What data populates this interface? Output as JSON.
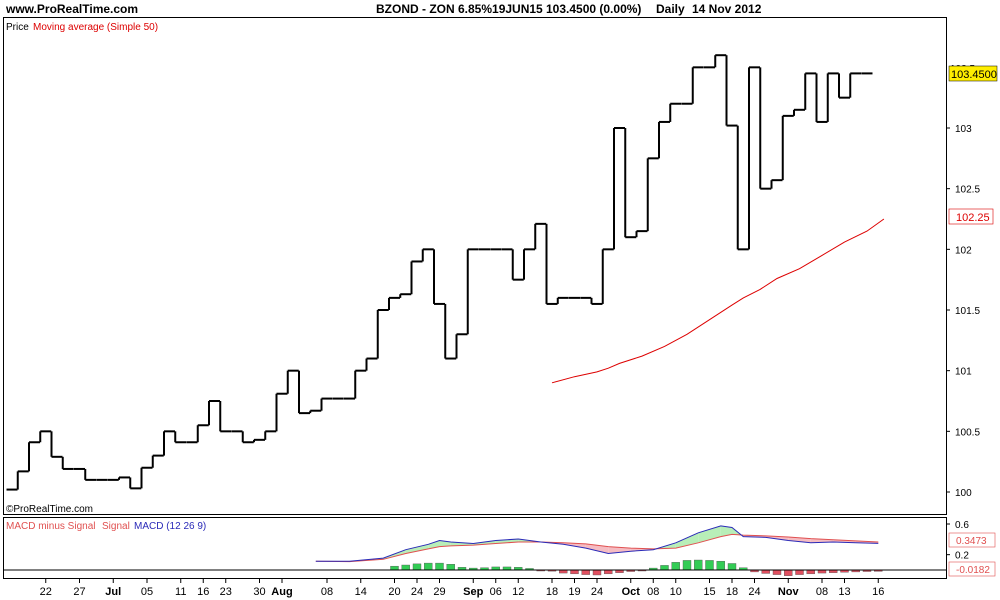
{
  "header": {
    "site": "www.ProRealTime.com",
    "instrument": "BZOND - ZON 6.85%19JUN15",
    "quote": "103.4500 (0.00%)",
    "period": "Daily",
    "date": "14 Nov 2012"
  },
  "price_panel": {
    "legend_price": "Price",
    "legend_ma": "Moving average (Simple 50)",
    "watermark": "©ProRealTime.com",
    "last_price_label": "103.4500",
    "ma_label": "102.25",
    "top_cut_label": "103.5"
  },
  "macd_panel": {
    "legend_hist": "MACD minus Signal",
    "legend_signal": "Signal",
    "legend_macd": "MACD (12 26 9)",
    "macd_label": "0.3473",
    "hist_label": "-0.0182"
  },
  "colors": {
    "price": "#000000",
    "ma": "#dd0000",
    "macd": "#2a2ab8",
    "signal": "#e05050",
    "hist_pos": "#33cc55",
    "hist_neg": "#e05060",
    "fill_up": "#b8eeb8",
    "fill_down": "#f5bcc2",
    "badge_price": "#ffee00",
    "frame": "#000000"
  },
  "chart_data": {
    "type": "line",
    "ylim": [
      99.85,
      104.0
    ],
    "yticks": [
      100,
      100.5,
      101,
      101.5,
      102,
      102.5,
      103
    ],
    "ytick_labels": [
      "100",
      "100.5",
      "101",
      "101.5",
      "102",
      "102.5",
      "103"
    ],
    "x_ticks": [
      {
        "i": 3,
        "label": "22",
        "month": false
      },
      {
        "i": 6,
        "label": "27",
        "month": false
      },
      {
        "i": 9,
        "label": "Jul",
        "month": true
      },
      {
        "i": 12,
        "label": "05",
        "month": false
      },
      {
        "i": 15,
        "label": "11",
        "month": false
      },
      {
        "i": 17,
        "label": "16",
        "month": false
      },
      {
        "i": 19,
        "label": "23",
        "month": false
      },
      {
        "i": 22,
        "label": "30",
        "month": false
      },
      {
        "i": 24,
        "label": "Aug",
        "month": true
      },
      {
        "i": 28,
        "label": "08",
        "month": false
      },
      {
        "i": 31,
        "label": "14",
        "month": false
      },
      {
        "i": 34,
        "label": "20",
        "month": false
      },
      {
        "i": 36,
        "label": "24",
        "month": false
      },
      {
        "i": 38,
        "label": "29",
        "month": false
      },
      {
        "i": 41,
        "label": "Sep",
        "month": true
      },
      {
        "i": 43,
        "label": "06",
        "month": false
      },
      {
        "i": 45,
        "label": "12",
        "month": false
      },
      {
        "i": 48,
        "label": "18",
        "month": false
      },
      {
        "i": 50,
        "label": "19",
        "month": false
      },
      {
        "i": 52,
        "label": "24",
        "month": false
      },
      {
        "i": 55,
        "label": "Oct",
        "month": true
      },
      {
        "i": 57,
        "label": "08",
        "month": false
      },
      {
        "i": 59,
        "label": "10",
        "month": false
      },
      {
        "i": 62,
        "label": "15",
        "month": false
      },
      {
        "i": 64,
        "label": "18",
        "month": false
      },
      {
        "i": 66,
        "label": "24",
        "month": false
      },
      {
        "i": 69,
        "label": "Nov",
        "month": true
      },
      {
        "i": 72,
        "label": "08",
        "month": false
      },
      {
        "i": 74,
        "label": "13",
        "month": false
      },
      {
        "i": 77,
        "label": "16",
        "month": false
      }
    ],
    "price": [
      100.02,
      100.17,
      100.41,
      100.5,
      100.29,
      100.19,
      100.19,
      100.1,
      100.1,
      100.1,
      100.12,
      100.03,
      100.2,
      100.3,
      100.5,
      100.41,
      100.41,
      100.55,
      100.75,
      100.5,
      100.5,
      100.41,
      100.43,
      100.5,
      100.81,
      101.0,
      100.65,
      100.67,
      100.77,
      100.77,
      100.77,
      101.0,
      101.1,
      101.5,
      101.6,
      101.63,
      101.9,
      102.0,
      101.55,
      101.1,
      101.3,
      102.0,
      102.0,
      102.0,
      102.0,
      101.75,
      102.0,
      102.21,
      101.55,
      101.6,
      101.6,
      101.6,
      101.55,
      102.0,
      103.0,
      102.1,
      102.15,
      102.75,
      103.05,
      103.2,
      103.2,
      103.5,
      103.5,
      103.6,
      103.02,
      102.0,
      103.5,
      102.5,
      102.57,
      103.1,
      103.15,
      103.45,
      103.05,
      103.45,
      103.25,
      103.45,
      103.45
    ],
    "moving_average": [
      [
        48.0,
        100.9
      ],
      [
        50.0,
        100.95
      ],
      [
        52.0,
        100.99
      ],
      [
        53.0,
        101.02
      ],
      [
        54.0,
        101.06
      ],
      [
        56.0,
        101.12
      ],
      [
        58.0,
        101.2
      ],
      [
        60.0,
        101.3
      ],
      [
        62.0,
        101.42
      ],
      [
        64.0,
        101.54
      ],
      [
        65.0,
        101.6
      ],
      [
        66.5,
        101.67
      ],
      [
        68.0,
        101.76
      ],
      [
        70.0,
        101.84
      ],
      [
        72.0,
        101.95
      ],
      [
        74.0,
        102.06
      ],
      [
        76.0,
        102.15
      ],
      [
        77.5,
        102.25
      ]
    ],
    "macd": {
      "ylim": [
        -0.22,
        0.75
      ],
      "yticks": [
        0.6,
        0.2
      ],
      "ytick_labels": [
        "0.6",
        "0.2"
      ],
      "macd": [
        [
          27,
          0.115
        ],
        [
          30,
          0.115
        ],
        [
          33,
          0.155
        ],
        [
          35,
          0.265
        ],
        [
          37,
          0.335
        ],
        [
          38,
          0.385
        ],
        [
          39,
          0.365
        ],
        [
          41,
          0.345
        ],
        [
          43,
          0.385
        ],
        [
          45,
          0.405
        ],
        [
          47,
          0.365
        ],
        [
          49,
          0.335
        ],
        [
          51,
          0.285
        ],
        [
          53,
          0.215
        ],
        [
          55,
          0.245
        ],
        [
          57,
          0.265
        ],
        [
          59,
          0.355
        ],
        [
          61,
          0.485
        ],
        [
          63,
          0.575
        ],
        [
          64,
          0.555
        ],
        [
          65,
          0.435
        ],
        [
          67,
          0.425
        ],
        [
          69,
          0.385
        ],
        [
          71,
          0.355
        ],
        [
          73,
          0.365
        ],
        [
          75,
          0.355
        ],
        [
          77,
          0.347
        ]
      ],
      "signal": [
        [
          27,
          0.115
        ],
        [
          30,
          0.11
        ],
        [
          33,
          0.14
        ],
        [
          35,
          0.215
        ],
        [
          37,
          0.275
        ],
        [
          38,
          0.305
        ],
        [
          39,
          0.315
        ],
        [
          41,
          0.325
        ],
        [
          43,
          0.345
        ],
        [
          45,
          0.365
        ],
        [
          47,
          0.365
        ],
        [
          49,
          0.355
        ],
        [
          51,
          0.34
        ],
        [
          53,
          0.305
        ],
        [
          55,
          0.285
        ],
        [
          57,
          0.275
        ],
        [
          59,
          0.285
        ],
        [
          61,
          0.355
        ],
        [
          63,
          0.435
        ],
        [
          64,
          0.465
        ],
        [
          65,
          0.455
        ],
        [
          67,
          0.445
        ],
        [
          69,
          0.43
        ],
        [
          71,
          0.41
        ],
        [
          73,
          0.395
        ],
        [
          75,
          0.38
        ],
        [
          77,
          0.365
        ]
      ],
      "histogram": [
        [
          34,
          0.05
        ],
        [
          35,
          0.065
        ],
        [
          36,
          0.08
        ],
        [
          37,
          0.09
        ],
        [
          38,
          0.09
        ],
        [
          39,
          0.075
        ],
        [
          40,
          0.035
        ],
        [
          41,
          0.025
        ],
        [
          42,
          0.03
        ],
        [
          43,
          0.04
        ],
        [
          44,
          0.04
        ],
        [
          45,
          0.035
        ],
        [
          46,
          0.02
        ],
        [
          47,
          -0.005
        ],
        [
          48,
          -0.015
        ],
        [
          49,
          -0.04
        ],
        [
          50,
          -0.05
        ],
        [
          51,
          -0.06
        ],
        [
          52,
          -0.065
        ],
        [
          53,
          -0.05
        ],
        [
          54,
          -0.035
        ],
        [
          55,
          -0.02
        ],
        [
          56,
          -0.005
        ],
        [
          57,
          0.025
        ],
        [
          58,
          0.06
        ],
        [
          59,
          0.1
        ],
        [
          60,
          0.125
        ],
        [
          61,
          0.13
        ],
        [
          62,
          0.125
        ],
        [
          63,
          0.115
        ],
        [
          64,
          0.085
        ],
        [
          65,
          0.03
        ],
        [
          66,
          -0.025
        ],
        [
          67,
          -0.045
        ],
        [
          68,
          -0.06
        ],
        [
          69,
          -0.075
        ],
        [
          70,
          -0.06
        ],
        [
          71,
          -0.05
        ],
        [
          72,
          -0.04
        ],
        [
          73,
          -0.035
        ],
        [
          74,
          -0.03
        ],
        [
          75,
          -0.025
        ],
        [
          76,
          -0.02
        ],
        [
          77,
          -0.018
        ]
      ]
    }
  }
}
